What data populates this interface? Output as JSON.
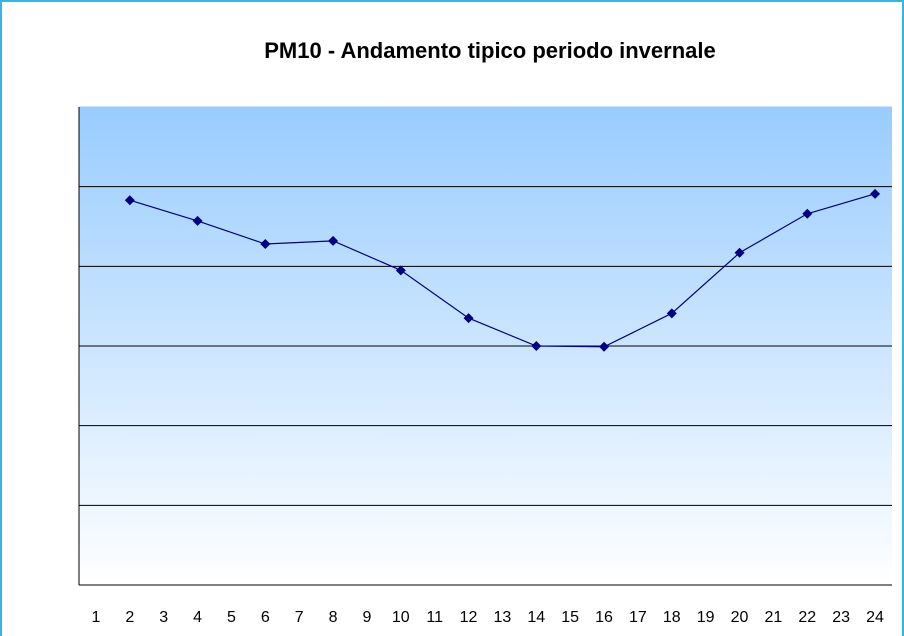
{
  "chart_data": {
    "type": "line",
    "title": "PM10 - Andamento tipico periodo invernale",
    "x": [
      2,
      4,
      6,
      8,
      10,
      12,
      14,
      16,
      18,
      20,
      22,
      24
    ],
    "values": [
      4.83,
      4.57,
      4.28,
      4.32,
      3.95,
      3.35,
      3.0,
      2.99,
      3.41,
      4.17,
      4.66,
      4.91
    ],
    "color": "#000080",
    "xlim": [
      0.5,
      24.5
    ],
    "xticks": [
      1,
      2,
      3,
      4,
      5,
      6,
      7,
      8,
      9,
      10,
      11,
      12,
      13,
      14,
      15,
      16,
      17,
      18,
      19,
      20,
      21,
      22,
      23,
      24
    ],
    "ylim": [
      0,
      6
    ],
    "yticks": [
      0,
      1,
      2,
      3,
      4,
      5,
      6
    ],
    "grid": true
  }
}
